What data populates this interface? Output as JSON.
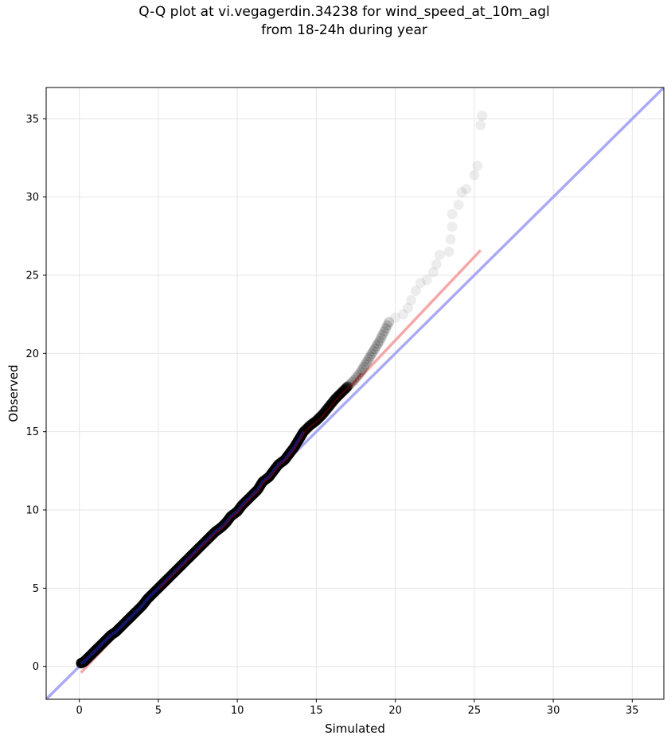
{
  "chart_data": {
    "type": "scatter",
    "title": "Q-Q plot at vi.vegagerdin.34238 for wind_speed_at_10m_agl",
    "subtitle": "from 18-24h during year",
    "xlabel": "Simulated",
    "ylabel": "Observed",
    "xlim": [
      -2.1,
      37.0
    ],
    "ylim": [
      -2.1,
      37.0
    ],
    "xticks": [
      0,
      5,
      10,
      15,
      20,
      25,
      30,
      35
    ],
    "yticks": [
      0,
      5,
      10,
      15,
      20,
      25,
      30,
      35
    ],
    "grid": true,
    "colors": {
      "points": "#000000",
      "reference_line": "#aaaaf5",
      "fit_line": "#f5a8a8",
      "dense_line_blue": "#1a1a80",
      "dense_line_red": "#8b0000",
      "grid": "#e6e6e6"
    },
    "reference_line": {
      "from": [
        -2.1,
        -2.1
      ],
      "to": [
        37.0,
        37.0
      ]
    },
    "fit_line": {
      "from": [
        0.1,
        -0.4
      ],
      "to": [
        25.4,
        26.6
      ]
    },
    "points": [
      [
        0.1,
        0.2
      ],
      [
        0.3,
        0.3
      ],
      [
        0.5,
        0.5
      ],
      [
        0.8,
        0.8
      ],
      [
        1.0,
        1.0
      ],
      [
        1.2,
        1.2
      ],
      [
        1.5,
        1.5
      ],
      [
        1.8,
        1.8
      ],
      [
        2.0,
        2.0
      ],
      [
        2.3,
        2.2
      ],
      [
        2.6,
        2.5
      ],
      [
        3.0,
        2.9
      ],
      [
        3.3,
        3.2
      ],
      [
        3.6,
        3.5
      ],
      [
        4.0,
        3.9
      ],
      [
        4.3,
        4.3
      ],
      [
        4.6,
        4.6
      ],
      [
        5.0,
        5.0
      ],
      [
        5.3,
        5.3
      ],
      [
        5.6,
        5.6
      ],
      [
        6.0,
        6.0
      ],
      [
        6.3,
        6.3
      ],
      [
        6.6,
        6.6
      ],
      [
        7.0,
        7.0
      ],
      [
        7.3,
        7.3
      ],
      [
        7.6,
        7.6
      ],
      [
        8.0,
        8.0
      ],
      [
        8.3,
        8.3
      ],
      [
        8.6,
        8.6
      ],
      [
        9.0,
        8.9
      ],
      [
        9.3,
        9.2
      ],
      [
        9.6,
        9.6
      ],
      [
        10.0,
        9.9
      ],
      [
        10.3,
        10.3
      ],
      [
        10.6,
        10.6
      ],
      [
        11.0,
        11.0
      ],
      [
        11.3,
        11.3
      ],
      [
        11.6,
        11.8
      ],
      [
        12.0,
        12.1
      ],
      [
        12.3,
        12.5
      ],
      [
        12.6,
        12.9
      ],
      [
        13.0,
        13.2
      ],
      [
        13.3,
        13.6
      ],
      [
        13.6,
        14.0
      ],
      [
        13.9,
        14.5
      ],
      [
        14.2,
        15.0
      ],
      [
        14.6,
        15.4
      ],
      [
        15.0,
        15.7
      ],
      [
        15.4,
        16.1
      ],
      [
        15.8,
        16.6
      ],
      [
        16.2,
        17.1
      ],
      [
        16.6,
        17.5
      ],
      [
        17.0,
        17.9
      ],
      [
        17.4,
        18.3
      ],
      [
        17.8,
        18.8
      ],
      [
        18.1,
        19.3
      ],
      [
        18.4,
        19.8
      ],
      [
        18.7,
        20.3
      ],
      [
        19.0,
        20.8
      ],
      [
        19.3,
        21.4
      ],
      [
        19.6,
        22.0
      ],
      [
        20.0,
        22.3
      ],
      [
        20.5,
        22.5
      ],
      [
        20.8,
        22.9
      ],
      [
        21.0,
        23.4
      ],
      [
        21.3,
        24.0
      ],
      [
        21.6,
        24.5
      ],
      [
        22.0,
        24.7
      ],
      [
        22.4,
        25.2
      ],
      [
        22.6,
        25.7
      ],
      [
        22.8,
        26.3
      ],
      [
        23.4,
        26.5
      ],
      [
        23.5,
        27.3
      ],
      [
        23.6,
        28.1
      ],
      [
        23.6,
        28.9
      ],
      [
        24.0,
        29.5
      ],
      [
        24.2,
        30.3
      ],
      [
        24.5,
        30.5
      ],
      [
        25.0,
        31.4
      ],
      [
        25.2,
        32.0
      ],
      [
        25.4,
        34.6
      ],
      [
        25.5,
        35.2
      ]
    ]
  }
}
